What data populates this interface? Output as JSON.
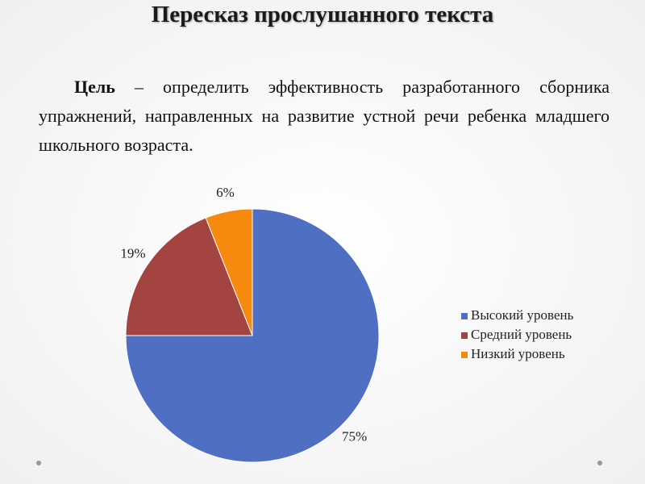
{
  "slide": {
    "title": "Пересказ прослушанного текста",
    "goal_label": "Цель",
    "goal_text": " – определить эффективность разработанного сборника упражнений, направленных на развитие устной речи ребенка младшего школьного возраста."
  },
  "chart_data": {
    "type": "pie",
    "categories": [
      "Высокий уровень",
      "Средний уровень",
      "Низкий уровень"
    ],
    "values": [
      75,
      19,
      6
    ],
    "value_labels": [
      "75%",
      "19%",
      "6%"
    ],
    "colors": [
      "#4f6fc2",
      "#a34441",
      "#f58a0f"
    ],
    "legend": "right"
  }
}
